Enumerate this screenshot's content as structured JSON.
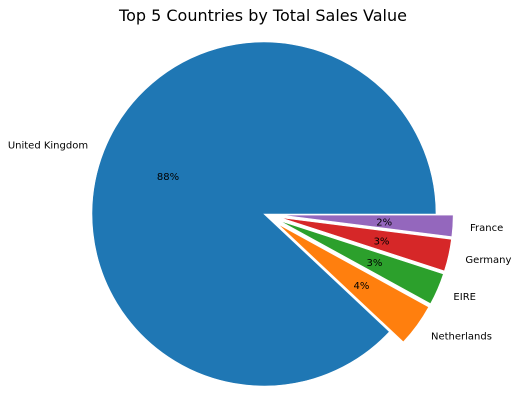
{
  "chart_data": {
    "type": "pie",
    "title": "Top 5 Countries by Total Sales Value",
    "slices": [
      {
        "label": "United Kingdom",
        "value": 88,
        "pct_label": "88%",
        "color": "#1f77b4",
        "explode": 0.0
      },
      {
        "label": "Netherlands",
        "value": 4,
        "pct_label": "4%",
        "color": "#ff7f0e",
        "explode": 0.1
      },
      {
        "label": "EIRE",
        "value": 3,
        "pct_label": "3%",
        "color": "#2ca02c",
        "explode": 0.1
      },
      {
        "label": "Germany",
        "value": 3,
        "pct_label": "3%",
        "color": "#d62728",
        "explode": 0.1
      },
      {
        "label": "France",
        "value": 2,
        "pct_label": "2%",
        "color": "#9467bd",
        "explode": 0.1
      }
    ],
    "start_angle_deg": 0,
    "direction": "counterclockwise",
    "legend": "none"
  }
}
